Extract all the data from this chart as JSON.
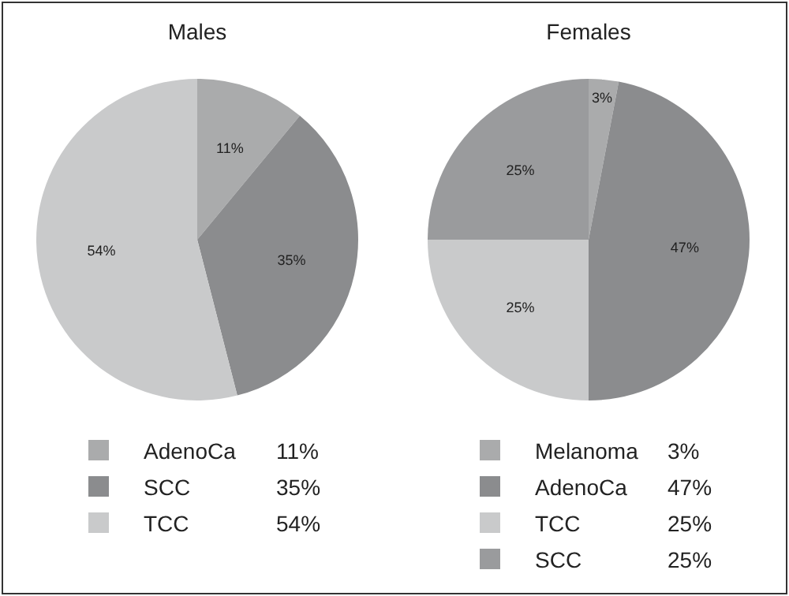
{
  "chart_data": [
    {
      "type": "pie",
      "title": "Males",
      "categories": [
        "AdenoCa",
        "SCC",
        "TCC"
      ],
      "values": [
        11,
        35,
        54
      ],
      "value_labels": [
        "11%",
        "35%",
        "54%"
      ],
      "colors": [
        "#aaabac",
        "#8b8c8e",
        "#c9cacb"
      ],
      "legend": "bottom"
    },
    {
      "type": "pie",
      "title": "Females",
      "categories": [
        "Melanoma",
        "AdenoCa",
        "TCC",
        "SCC"
      ],
      "values": [
        3,
        47,
        25,
        25
      ],
      "value_labels": [
        "3%",
        "47%",
        "25%",
        "25%"
      ],
      "colors": [
        "#aaabac",
        "#8b8c8e",
        "#c9cacb",
        "#9a9b9d"
      ],
      "legend": "bottom"
    }
  ]
}
